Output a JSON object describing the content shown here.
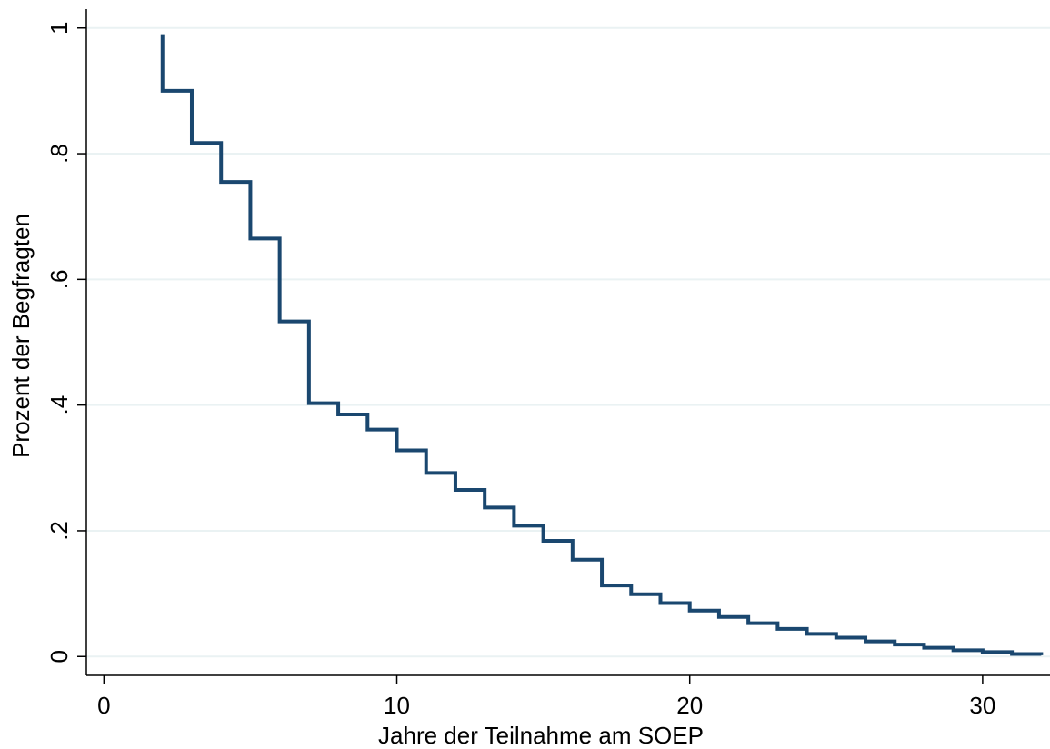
{
  "chart_data": {
    "type": "line",
    "step": true,
    "xlabel": "Jahre der Teilnahme am SOEP",
    "ylabel": "Prozent der Begfragten",
    "xlim": [
      -0.6,
      32.3
    ],
    "ylim": [
      -0.03,
      1.03
    ],
    "xticks": [
      0,
      10,
      20,
      30
    ],
    "xtick_labels": [
      "0",
      "10",
      "20",
      "30"
    ],
    "yticks": [
      0,
      0.2,
      0.4,
      0.6,
      0.8,
      1
    ],
    "ytick_labels": [
      "0",
      ".2",
      ".4",
      ".6",
      ".8",
      "1"
    ],
    "grid": "horizontal",
    "line_color": "#1a476f",
    "grid_color": "#eaf2f3",
    "series": [
      {
        "x": [
          2,
          3,
          4,
          5,
          6,
          7,
          8,
          9,
          10,
          11,
          12,
          13,
          14,
          15,
          16,
          17,
          18,
          19,
          20,
          21,
          22,
          23,
          24,
          25,
          26,
          27,
          28,
          29,
          30,
          31,
          32
        ],
        "y": [
          0.9,
          0.817,
          0.755,
          0.665,
          0.533,
          0.403,
          0.385,
          0.361,
          0.328,
          0.292,
          0.265,
          0.237,
          0.208,
          0.184,
          0.154,
          0.113,
          0.099,
          0.085,
          0.073,
          0.063,
          0.053,
          0.044,
          0.036,
          0.03,
          0.024,
          0.019,
          0.014,
          0.01,
          0.007,
          0.004,
          0.002
        ],
        "start_y": 0.99
      }
    ]
  }
}
